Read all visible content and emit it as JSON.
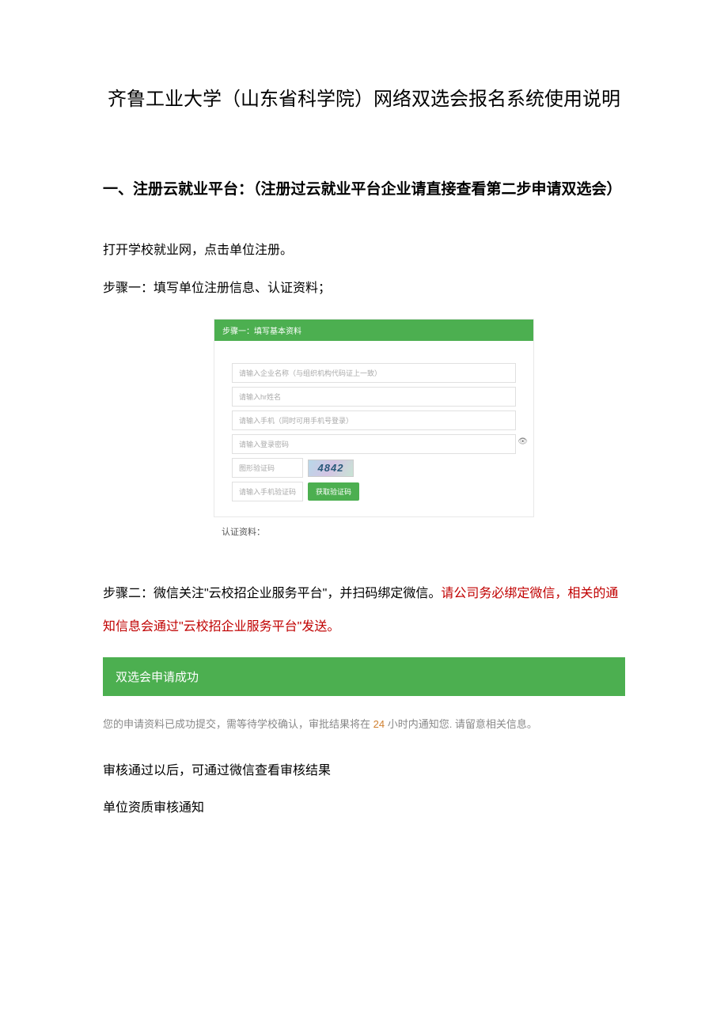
{
  "title": "齐鲁工业大学（山东省科学院）网络双选会报名系统使用说明",
  "section1": {
    "heading": "一、注册云就业平台：（注册过云就业平台企业请直接查看第二步申请双选会）",
    "line1": "打开学校就业网，点击单位注册。",
    "line2": "步骤一：填写单位注册信息、认证资料；"
  },
  "form": {
    "header": "步骤一：填写基本资料",
    "fields": {
      "company": "请输入企业名称（与组织机构代码证上一致）",
      "contact": "请输入hr姓名",
      "phone": "请输入手机（同时可用手机号登录）",
      "password": "请输入登录密码",
      "captcha_label": "图形验证码",
      "captcha_text": "4842",
      "sms_label": "请输入手机验证码",
      "sms_button": "获取验证码"
    },
    "footer_label": "认证资料："
  },
  "step2": {
    "prefix": "步骤二：微信关注\"云校招企业服务平台\"，并扫码绑定微信。",
    "red": "请公司务必绑定微信，相关的通知信息会通过\"云校招企业服务平台\"发送。"
  },
  "success_bar": "双选会申请成功",
  "notice": {
    "p1": "您的申请资料已成功提交，需等待学校确认，审批结果将在 ",
    "hours": "24",
    "p2": " 小时内通知您. 请留意相关信息。"
  },
  "after1": "审核通过以后，可通过微信查看审核结果",
  "after2": "单位资质审核通知",
  "colors": {
    "green": "#4caf50",
    "red_text": "#c00000",
    "gray_text": "#888888",
    "orange_text": "#d08030"
  }
}
